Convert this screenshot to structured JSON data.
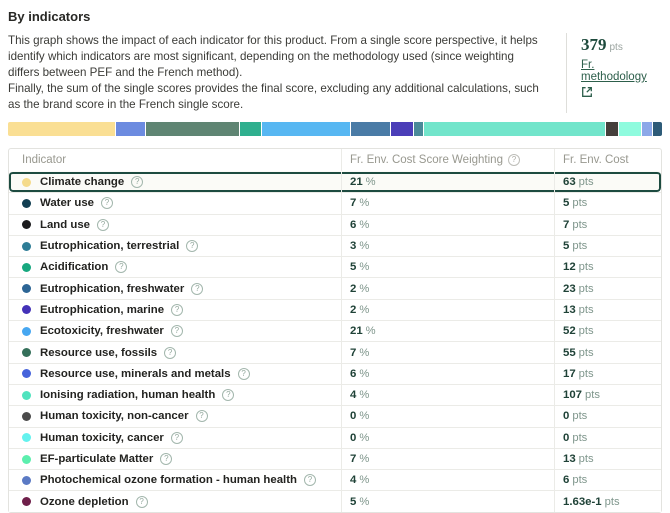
{
  "header": {
    "title": "By indicators",
    "description_1": "This graph shows the impact of each indicator for this product. From a single score perspective, it helps identify which indicators are most significant, depending on the methodology used (since weighting differs between PEF and the French method).",
    "description_2": "Finally, the sum of the single scores provides the final score, excluding any additional calculations, such as the brand score in the French single score.",
    "score_value": "379",
    "score_unit": "pts",
    "link_label": "Fr. methodology"
  },
  "colors": {
    "accent_green": "#1d4a3c",
    "link_green": "#2d5f4b",
    "selected_row_border": "#1d4b40",
    "table_border": "#e3e3df",
    "header_text": "#98988f"
  },
  "stacked_bar": {
    "total_pts": 379,
    "segments": [
      {
        "indicator": "Climate change",
        "value_pts": 63,
        "color": "#fadf94"
      },
      {
        "indicator": "Resource use, minerals and metals",
        "value_pts": 17,
        "color": "#6c8be0"
      },
      {
        "indicator": "Resource use, fossils",
        "value_pts": 55,
        "color": "#5f8573"
      },
      {
        "indicator": "Acidification",
        "value_pts": 12,
        "color": "#2faf8e"
      },
      {
        "indicator": "Ecotoxicity, freshwater",
        "value_pts": 52,
        "color": "#57b7f2"
      },
      {
        "indicator": "Eutrophication, freshwater",
        "value_pts": 23,
        "color": "#4a7ba6"
      },
      {
        "indicator": "Eutrophication, marine",
        "value_pts": 13,
        "color": "#4b3eb8"
      },
      {
        "indicator": "Eutrophication, terrestrial",
        "value_pts": 5,
        "color": "#4a8a99"
      },
      {
        "indicator": "Ionising radiation, human health",
        "value_pts": 107,
        "color": "#72e5cb"
      },
      {
        "indicator": "Land use",
        "value_pts": 7,
        "color": "#453f3b"
      },
      {
        "indicator": "EF-particulate Matter",
        "value_pts": 13,
        "color": "#8ffbde"
      },
      {
        "indicator": "Photochemical ozone formation - human health",
        "value_pts": 6,
        "color": "#8ca8e8"
      },
      {
        "indicator": "Water use",
        "value_pts": 5,
        "color": "#2e5b78"
      }
    ]
  },
  "table": {
    "headers": [
      "Indicator",
      "Fr. Env. Cost Score Weighting",
      "Fr. Env. Cost"
    ],
    "units": {
      "weighting": "%",
      "cost": "pts"
    },
    "help_glyph": "?",
    "rows": [
      {
        "label": "Climate change",
        "dot_color": "#f5db8b",
        "weighting": "21",
        "cost": "63",
        "selected": true
      },
      {
        "label": "Water use",
        "dot_color": "#123f52",
        "weighting": "7",
        "cost": "5"
      },
      {
        "label": "Land use",
        "dot_color": "#1c1c1e",
        "weighting": "6",
        "cost": "7"
      },
      {
        "label": "Eutrophication, terrestrial",
        "dot_color": "#2e7d96",
        "weighting": "3",
        "cost": "5"
      },
      {
        "label": "Acidification",
        "dot_color": "#17a87f",
        "weighting": "5",
        "cost": "12"
      },
      {
        "label": "Eutrophication, freshwater",
        "dot_color": "#2d6595",
        "weighting": "2",
        "cost": "23"
      },
      {
        "label": "Eutrophication, marine",
        "dot_color": "#4432b8",
        "weighting": "2",
        "cost": "13"
      },
      {
        "label": "Ecotoxicity, freshwater",
        "dot_color": "#47a7f1",
        "weighting": "21",
        "cost": "52"
      },
      {
        "label": "Resource use, fossils",
        "dot_color": "#35705a",
        "weighting": "7",
        "cost": "55"
      },
      {
        "label": "Resource use, minerals and metals",
        "dot_color": "#4663db",
        "weighting": "6",
        "cost": "17"
      },
      {
        "label": "Ionising radiation, human health",
        "dot_color": "#50e3be",
        "weighting": "4",
        "cost": "107"
      },
      {
        "label": "Human toxicity, non-cancer",
        "dot_color": "#4b4b4b",
        "weighting": "0",
        "cost": "0"
      },
      {
        "label": "Human toxicity, cancer",
        "dot_color": "#64f2ee",
        "weighting": "0",
        "cost": "0"
      },
      {
        "label": "EF-particulate Matter",
        "dot_color": "#5cefae",
        "weighting": "7",
        "cost": "13"
      },
      {
        "label": "Photochemical ozone formation - human health",
        "dot_color": "#5b7ac4",
        "weighting": "4",
        "cost": "6"
      },
      {
        "label": "Ozone depletion",
        "dot_color": "#6f1f4a",
        "weighting": "5",
        "cost": "1.63e-1"
      }
    ]
  }
}
